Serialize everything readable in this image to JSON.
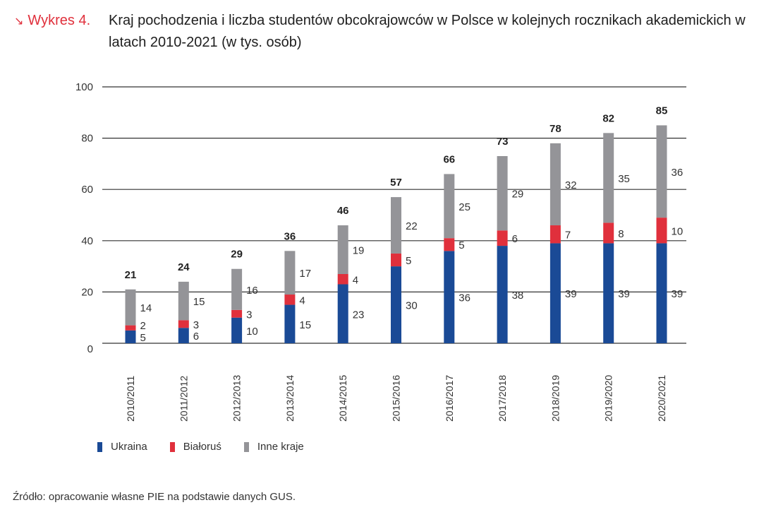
{
  "figure": {
    "label": "Wykres 4.",
    "arrow_icon": "arrow-down-right-icon",
    "title": "Kraj pochodzenia i liczba studentów obcokrajowców w Polsce w kolejnych rocznikach akademickich w latach 2010-2021 (w tys. osób)"
  },
  "colors": {
    "accent": "#e0303c",
    "ukraina": "#1a4a96",
    "bialorus": "#e0303c",
    "inne": "#949498",
    "grid": "#333333"
  },
  "chart_data": {
    "type": "bar",
    "stacked": true,
    "title": "Kraj pochodzenia i liczba studentów obcokrajowców w Polsce w kolejnych rocznikach akademickich w latach 2010-2021 (w tys. osób)",
    "xlabel": "",
    "ylabel": "",
    "ylim": [
      0,
      100
    ],
    "yticks": [
      0,
      20,
      40,
      60,
      80,
      100
    ],
    "grid": true,
    "legend_position": "bottom-left",
    "categories": [
      "2010/2011",
      "2011/2012",
      "2012/2013",
      "2013/2014",
      "2014/2015",
      "2015/2016",
      "2016/2017",
      "2017/2018",
      "2018/2019",
      "2019/2020",
      "2020/2021"
    ],
    "series": [
      {
        "name": "Ukraina",
        "color": "#1a4a96",
        "values": [
          5,
          6,
          10,
          15,
          23,
          30,
          36,
          38,
          39,
          39,
          39
        ]
      },
      {
        "name": "Białoruś",
        "color": "#e0303c",
        "values": [
          2,
          3,
          3,
          4,
          4,
          5,
          5,
          6,
          7,
          8,
          10
        ]
      },
      {
        "name": "Inne kraje",
        "color": "#949498",
        "values": [
          14,
          15,
          16,
          17,
          19,
          22,
          25,
          29,
          32,
          35,
          36
        ]
      }
    ],
    "totals": [
      21,
      24,
      29,
      36,
      46,
      57,
      66,
      73,
      78,
      82,
      85
    ]
  },
  "legend": [
    {
      "label": "Ukraina",
      "color": "#1a4a96"
    },
    {
      "label": "Białoruś",
      "color": "#e0303c"
    },
    {
      "label": "Inne kraje",
      "color": "#949498"
    }
  ],
  "source": "Źródło: opracowanie własne PIE na podstawie danych GUS."
}
